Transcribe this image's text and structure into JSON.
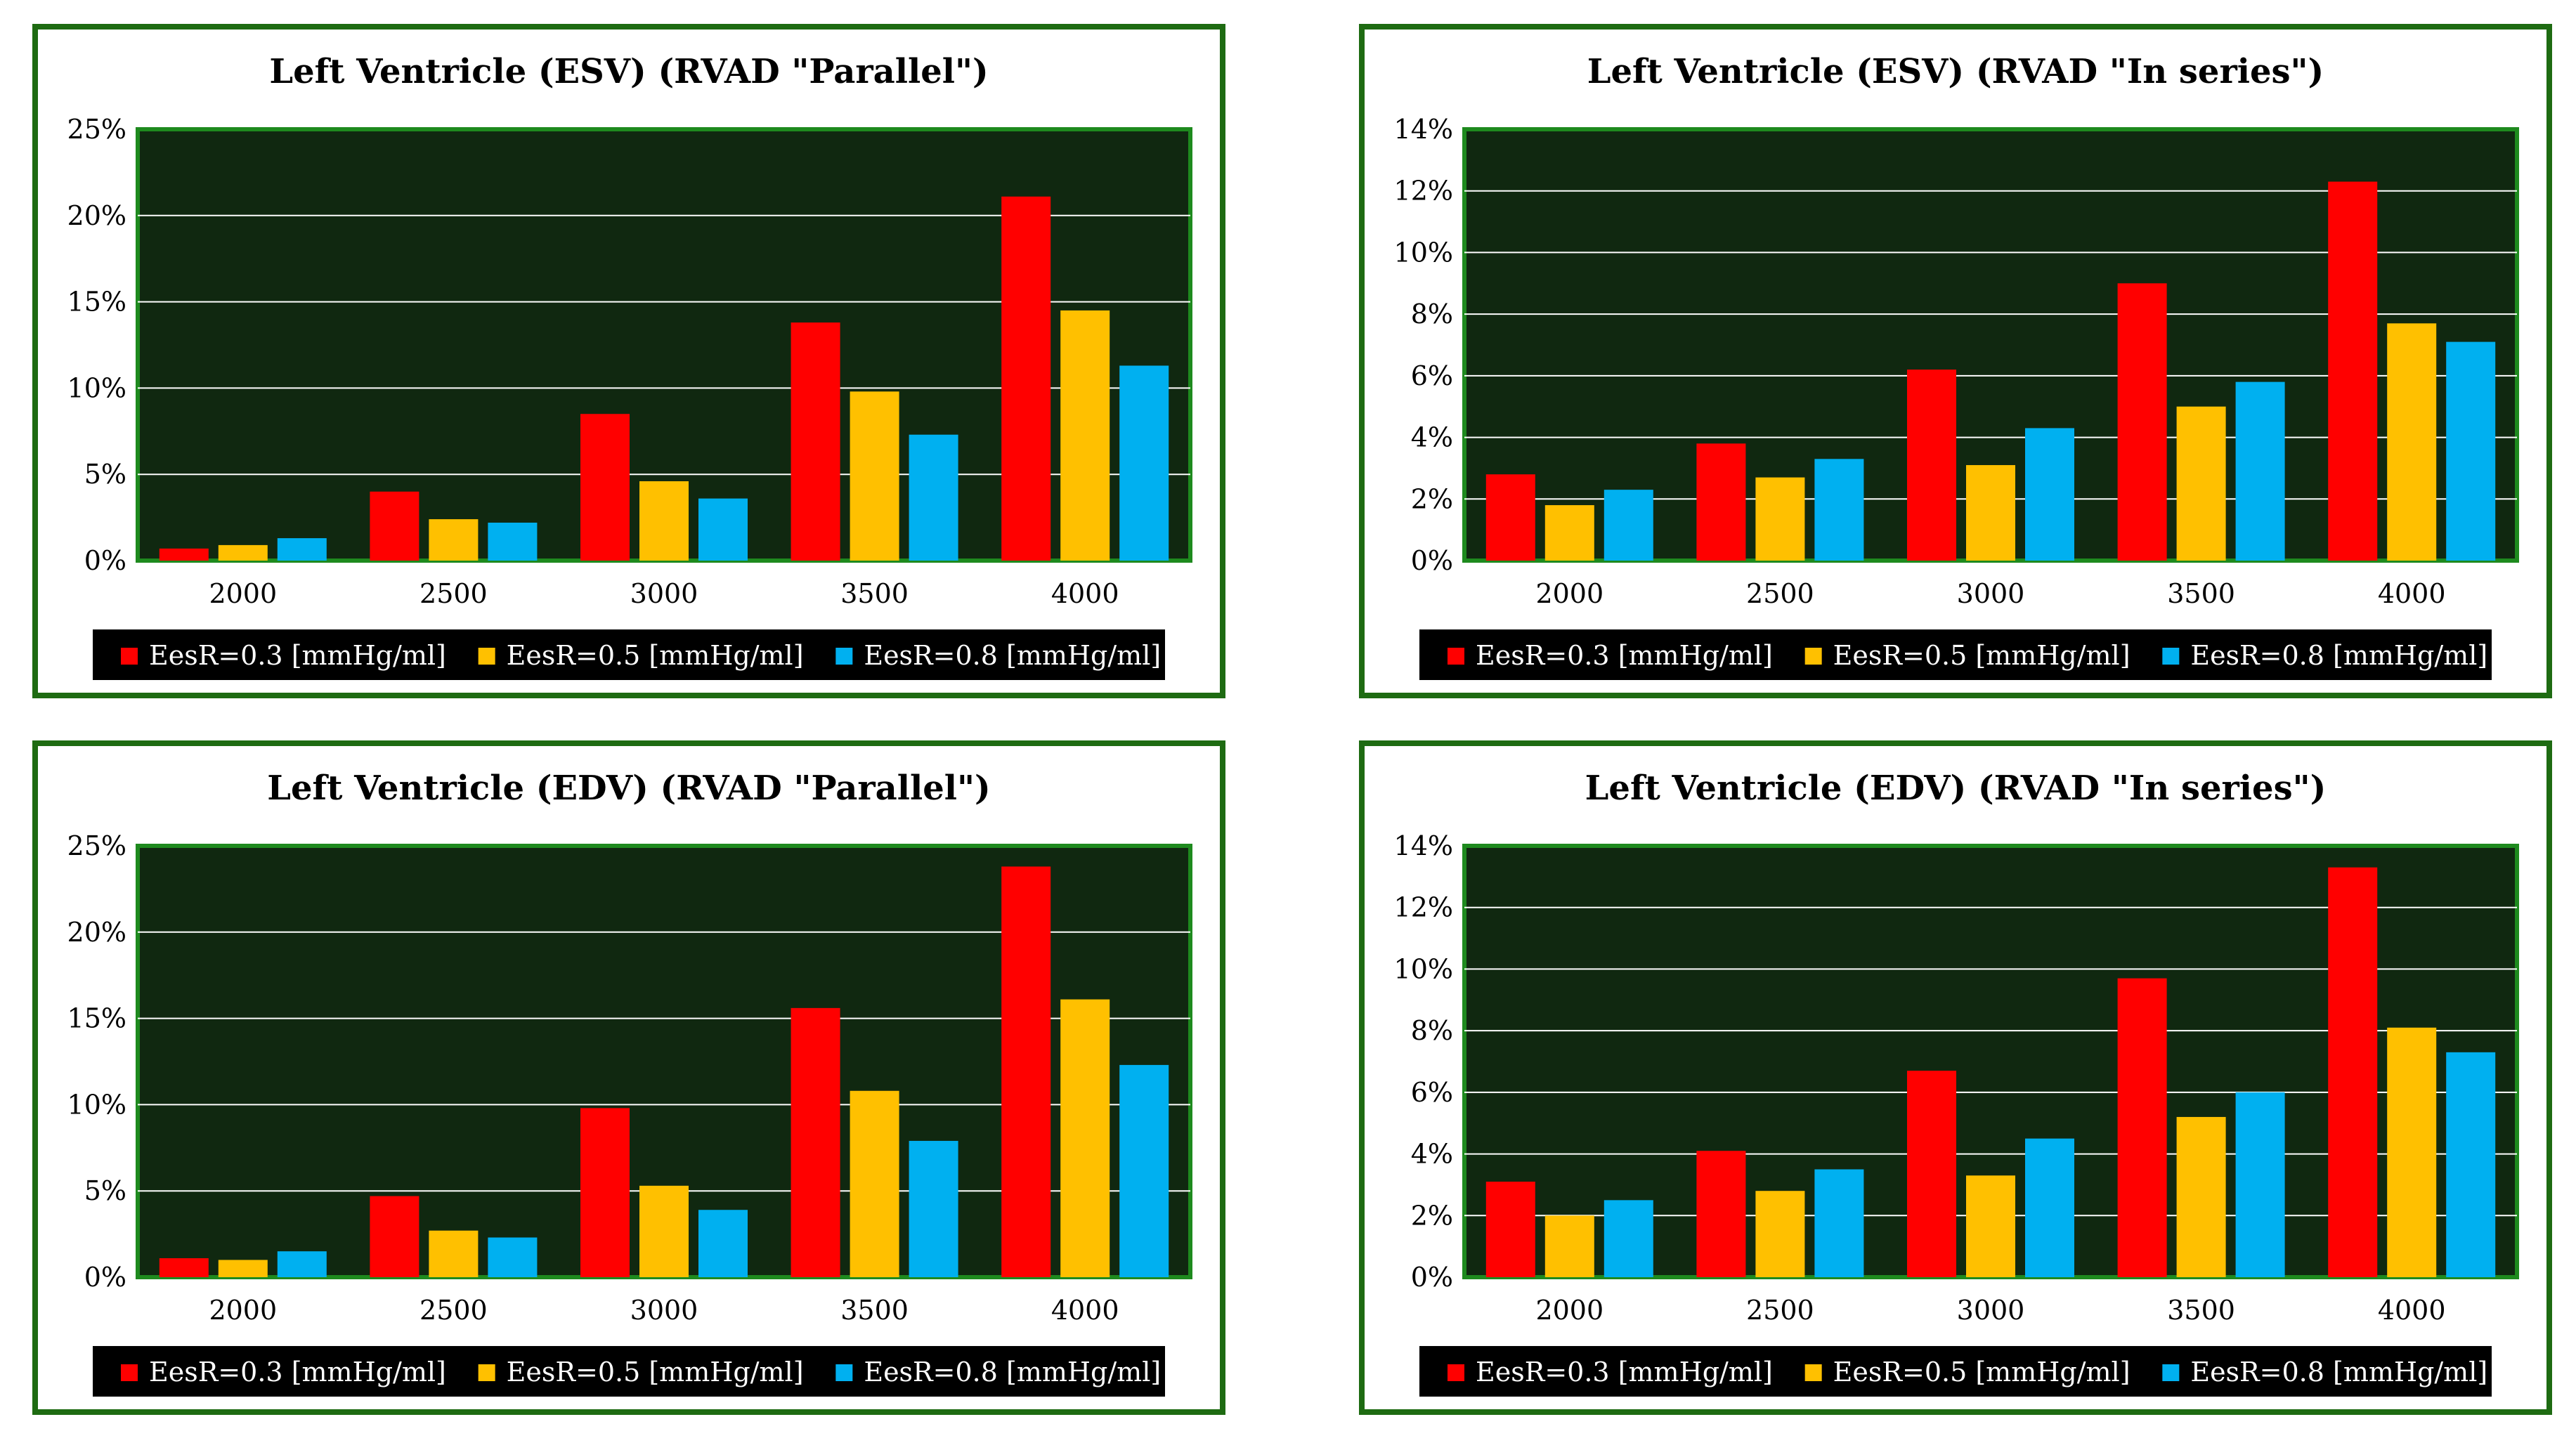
{
  "colors": {
    "panel_border": "#1e6b12",
    "plot_background": "#102810",
    "plot_border": "#1e8a1e",
    "gridline": "#ffffff",
    "legend_background": "#000000",
    "legend_text": "#ffffff",
    "axis_text": "#000000",
    "series": [
      "#ff0000",
      "#ffc000",
      "#00b0f0"
    ]
  },
  "chart_data": [
    {
      "type": "bar",
      "title": "Left Ventricle  (ESV)  (RVAD \"Parallel\")",
      "xlabel": "",
      "ylabel": "",
      "categories": [
        "2000",
        "2500",
        "3000",
        "3500",
        "4000"
      ],
      "ylim": [
        0,
        25
      ],
      "yticks": [
        "0%",
        "5%",
        "10%",
        "15%",
        "20%",
        "25%"
      ],
      "grid": true,
      "legend_position": "bottom",
      "series": [
        {
          "name": "EesR=0.3 [mmHg/ml]",
          "values": [
            0.7,
            4.0,
            8.5,
            13.8,
            21.1
          ]
        },
        {
          "name": "EesR=0.5 [mmHg/ml]",
          "values": [
            0.9,
            2.4,
            4.6,
            9.8,
            14.5
          ]
        },
        {
          "name": "EesR=0.8 [mmHg/ml]",
          "values": [
            1.3,
            2.2,
            3.6,
            7.3,
            11.3
          ]
        }
      ]
    },
    {
      "type": "bar",
      "title": "Left Ventricle  (ESV)  (RVAD \"In series\")",
      "xlabel": "",
      "ylabel": "",
      "categories": [
        "2000",
        "2500",
        "3000",
        "3500",
        "4000"
      ],
      "ylim": [
        0,
        14
      ],
      "yticks": [
        "0%",
        "2%",
        "4%",
        "6%",
        "8%",
        "10%",
        "12%",
        "14%"
      ],
      "grid": true,
      "legend_position": "bottom",
      "series": [
        {
          "name": "EesR=0.3 [mmHg/ml]",
          "values": [
            2.8,
            3.8,
            6.2,
            9.0,
            12.3
          ]
        },
        {
          "name": "EesR=0.5 [mmHg/ml]",
          "values": [
            1.8,
            2.7,
            3.1,
            5.0,
            7.7
          ]
        },
        {
          "name": "EesR=0.8 [mmHg/ml]",
          "values": [
            2.3,
            3.3,
            4.3,
            5.8,
            7.1
          ]
        }
      ]
    },
    {
      "type": "bar",
      "title": "Left Ventricle  (EDV)  (RVAD \"Parallel\")",
      "xlabel": "",
      "ylabel": "",
      "categories": [
        "2000",
        "2500",
        "3000",
        "3500",
        "4000"
      ],
      "ylim": [
        0,
        25
      ],
      "yticks": [
        "0%",
        "5%",
        "10%",
        "15%",
        "20%",
        "25%"
      ],
      "grid": true,
      "legend_position": "bottom",
      "series": [
        {
          "name": "EesR=0.3 [mmHg/ml]",
          "values": [
            1.1,
            4.7,
            9.8,
            15.6,
            23.8
          ]
        },
        {
          "name": "EesR=0.5 [mmHg/ml]",
          "values": [
            1.0,
            2.7,
            5.3,
            10.8,
            16.1
          ]
        },
        {
          "name": "EesR=0.8 [mmHg/ml]",
          "values": [
            1.5,
            2.3,
            3.9,
            7.9,
            12.3
          ]
        }
      ]
    },
    {
      "type": "bar",
      "title": "Left Ventricle  (EDV)  (RVAD \"In series\")",
      "xlabel": "",
      "ylabel": "",
      "categories": [
        "2000",
        "2500",
        "3000",
        "3500",
        "4000"
      ],
      "ylim": [
        0,
        14
      ],
      "yticks": [
        "0%",
        "2%",
        "4%",
        "6%",
        "8%",
        "10%",
        "12%",
        "14%"
      ],
      "grid": true,
      "legend_position": "bottom",
      "series": [
        {
          "name": "EesR=0.3 [mmHg/ml]",
          "values": [
            3.1,
            4.1,
            6.7,
            9.7,
            13.3
          ]
        },
        {
          "name": "EesR=0.5 [mmHg/ml]",
          "values": [
            2.0,
            2.8,
            3.3,
            5.2,
            8.1
          ]
        },
        {
          "name": "EesR=0.8 [mmHg/ml]",
          "values": [
            2.5,
            3.5,
            4.5,
            6.0,
            7.3
          ]
        }
      ]
    }
  ]
}
